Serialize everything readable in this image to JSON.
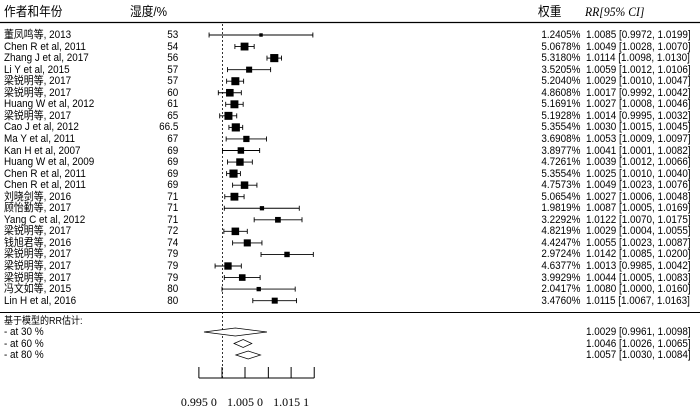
{
  "headers": {
    "study": "作者和年份",
    "humidity": "湿度/%",
    "weight": "权重",
    "rr_ci": "RR[95% CI]"
  },
  "summary_title": "基于模型的RR估计:",
  "chart_data": {
    "type": "forest",
    "x_scale": "log",
    "reference_line": 1,
    "x_ticks": [
      0.995,
      1.0,
      1.005,
      1.0101,
      1.0151,
      1.0202
    ],
    "x_tick_labels": [
      "0.995 0",
      "1.005 0",
      "1.015 1"
    ],
    "x_tick_label_values": [
      0.995,
      1.005,
      1.0151
    ],
    "studies": [
      {
        "study": "董凤鸣等, 2013",
        "humidity": "53",
        "weight": "1.2405%",
        "rr": 1.0085,
        "lo": 0.9972,
        "hi": 1.0199,
        "text": "1.0085 [0.9972, 1.0199]"
      },
      {
        "study": "Chen R et al, 2011",
        "humidity": "54",
        "weight": "5.0678%",
        "rr": 1.0049,
        "lo": 1.0028,
        "hi": 1.007,
        "text": "1.0049 [1.0028, 1.0070]"
      },
      {
        "study": "Zhang J et al, 2017",
        "humidity": "56",
        "weight": "5.3180%",
        "rr": 1.0114,
        "lo": 1.0098,
        "hi": 1.013,
        "text": "1.0114 [1.0098, 1.0130]"
      },
      {
        "study": "Li Y et al, 2015",
        "humidity": "57",
        "weight": "3.5205%",
        "rr": 1.0059,
        "lo": 1.0012,
        "hi": 1.0106,
        "text": "1.0059 [1.0012, 1.0106]"
      },
      {
        "study": "梁锐明等, 2017",
        "humidity": "57",
        "weight": "5.2040%",
        "rr": 1.0029,
        "lo": 1.001,
        "hi": 1.0047,
        "text": "1.0029 [1.0010, 1.0047]"
      },
      {
        "study": "梁锐明等, 2017",
        "humidity": "60",
        "weight": "4.8608%",
        "rr": 1.0017,
        "lo": 0.9992,
        "hi": 1.0042,
        "text": "1.0017 [0.9992, 1.0042]"
      },
      {
        "study": "Huang W et al, 2012",
        "humidity": "61",
        "weight": "5.1691%",
        "rr": 1.0027,
        "lo": 1.0008,
        "hi": 1.0046,
        "text": "1.0027 [1.0008, 1.0046]"
      },
      {
        "study": "梁锐明等, 2017",
        "humidity": "65",
        "weight": "5.1928%",
        "rr": 1.0014,
        "lo": 0.9995,
        "hi": 1.0032,
        "text": "1.0014 [0.9995, 1.0032]"
      },
      {
        "study": "Cao J et al, 2012",
        "humidity": "66.5",
        "weight": "5.3554%",
        "rr": 1.003,
        "lo": 1.0015,
        "hi": 1.0045,
        "text": "1.0030 [1.0015, 1.0045]"
      },
      {
        "study": "Ma Y et al, 2011",
        "humidity": "67",
        "weight": "3.6908%",
        "rr": 1.0053,
        "lo": 1.0009,
        "hi": 1.0097,
        "text": "1.0053 [1.0009, 1.0097]"
      },
      {
        "study": "Kan H et al, 2007",
        "humidity": "69",
        "weight": "3.8977%",
        "rr": 1.0041,
        "lo": 1.0001,
        "hi": 1.0082,
        "text": "1.0041 [1.0001, 1.0082]"
      },
      {
        "study": "Huang W et al, 2009",
        "humidity": "69",
        "weight": "4.7261%",
        "rr": 1.0039,
        "lo": 1.0012,
        "hi": 1.0066,
        "text": "1.0039 [1.0012, 1.0066]"
      },
      {
        "study": "Chen R et al, 2011",
        "humidity": "69",
        "weight": "5.3554%",
        "rr": 1.0025,
        "lo": 1.001,
        "hi": 1.004,
        "text": "1.0025 [1.0010, 1.0040]"
      },
      {
        "study": "Chen R et al, 2011",
        "humidity": "69",
        "weight": "4.7573%",
        "rr": 1.0049,
        "lo": 1.0023,
        "hi": 1.0076,
        "text": "1.0049 [1.0023, 1.0076]"
      },
      {
        "study": "刘晓剑等, 2016",
        "humidity": "71",
        "weight": "5.0654%",
        "rr": 1.0027,
        "lo": 1.0006,
        "hi": 1.0048,
        "text": "1.0027 [1.0006, 1.0048]"
      },
      {
        "study": "顾怡勤等, 2017",
        "humidity": "71",
        "weight": "1.9819%",
        "rr": 1.0087,
        "lo": 1.0005,
        "hi": 1.0169,
        "text": "1.0087 [1.0005, 1.0169]"
      },
      {
        "study": "Yang C et al, 2012",
        "humidity": "71",
        "weight": "3.2292%",
        "rr": 1.0122,
        "lo": 1.007,
        "hi": 1.0175,
        "text": "1.0122 [1.0070, 1.0175]"
      },
      {
        "study": "梁锐明等, 2017",
        "humidity": "72",
        "weight": "4.8219%",
        "rr": 1.0029,
        "lo": 1.0004,
        "hi": 1.0055,
        "text": "1.0029 [1.0004, 1.0055]"
      },
      {
        "study": "钱旭君等, 2016",
        "humidity": "74",
        "weight": "4.4247%",
        "rr": 1.0055,
        "lo": 1.0023,
        "hi": 1.0087,
        "text": "1.0055 [1.0023, 1.0087]"
      },
      {
        "study": "梁锐明等, 2017",
        "humidity": "79",
        "weight": "2.9724%",
        "rr": 1.0142,
        "lo": 1.0085,
        "hi": 1.02,
        "text": "1.0142 [1.0085, 1.0200]"
      },
      {
        "study": "梁锐明等, 2017",
        "humidity": "79",
        "weight": "4.6377%",
        "rr": 1.0013,
        "lo": 0.9985,
        "hi": 1.0042,
        "text": "1.0013 [0.9985, 1.0042]"
      },
      {
        "study": "梁锐明等, 2017",
        "humidity": "79",
        "weight": "3.9929%",
        "rr": 1.0044,
        "lo": 1.0005,
        "hi": 1.0083,
        "text": "1.0044 [1.0005, 1.0083]"
      },
      {
        "study": "冯文如等, 2015",
        "humidity": "80",
        "weight": "2.0417%",
        "rr": 1.008,
        "lo": 1.0,
        "hi": 1.016,
        "text": "1.0080 [1.0000, 1.0160]"
      },
      {
        "study": "Lin H et al, 2016",
        "humidity": "80",
        "weight": "3.4760%",
        "rr": 1.0115,
        "lo": 1.0067,
        "hi": 1.0163,
        "text": "1.0115 [1.0067, 1.0163]"
      }
    ],
    "summaries": [
      {
        "label": "- at  30 %",
        "rr": 1.0029,
        "lo": 0.9961,
        "hi": 1.0098,
        "text": "1.0029 [0.9961, 1.0098]"
      },
      {
        "label": "- at  60 %",
        "rr": 1.0046,
        "lo": 1.0026,
        "hi": 1.0065,
        "text": "1.0046 [1.0026, 1.0065]"
      },
      {
        "label": "- at  80 %",
        "rr": 1.0057,
        "lo": 1.003,
        "hi": 1.0084,
        "text": "1.0057 [1.0030, 1.0084]"
      }
    ]
  }
}
